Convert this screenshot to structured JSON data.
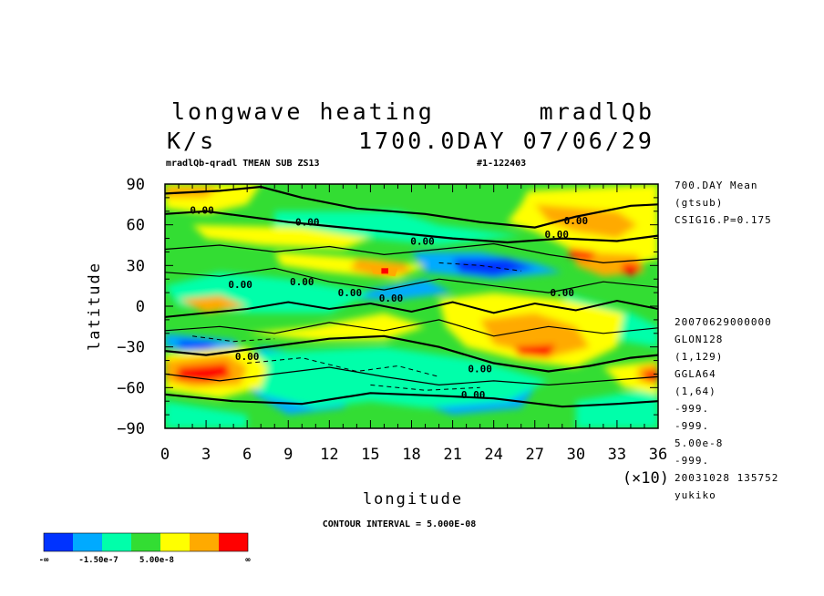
{
  "header": {
    "title_left": "longwave heating",
    "title_right": "mradlQb",
    "units": "K/s",
    "time": "1700.0DAY 07/06/29",
    "subtitle_left": "mradlQb-qradl TMEAN SUB ZS13",
    "subtitle_right": "#1-122403"
  },
  "side_info_top": [
    "700.DAY Mean",
    "(gtsub)",
    "CSIG16.P=0.175"
  ],
  "side_info_bottom": [
    "20070629000000",
    "GLON128",
    "(1,129)",
    "GGLA64",
    "(1,64)",
    "-999.",
    "-999.",
    "5.00e-8",
    "-999.",
    "20031028 135752",
    "yukiko"
  ],
  "footer": {
    "contour_interval": "CONTOUR INTERVAL = 5.000E-08",
    "x_multiplier": "(×10)"
  },
  "contour_labels": [
    "0.00",
    "0.00",
    "0.00",
    "0.00",
    "0.00",
    "0.00",
    "0.00",
    "0.00",
    "0.00",
    "0.00",
    "0.00",
    "0.00",
    "0.00"
  ],
  "colorbar": {
    "colors": [
      "#0033ff",
      "#00aaff",
      "#00ffaa",
      "#33dd33",
      "#ffff00",
      "#ffaa00",
      "#ff0000"
    ],
    "labels": [
      "-∞",
      "-1.50e-7",
      "5.00e-8",
      "∞"
    ]
  },
  "chart_data": {
    "type": "heatmap",
    "title": "longwave heating",
    "xlabel": "longitude",
    "ylabel": "latitude",
    "xlim": [
      0,
      360
    ],
    "ylim": [
      -90,
      90
    ],
    "x_ticks": [
      "0",
      "3",
      "6",
      "9",
      "12",
      "15",
      "18",
      "21",
      "24",
      "27",
      "30",
      "33",
      "36"
    ],
    "y_ticks": [
      "90",
      "60",
      "30",
      "0",
      "−30",
      "−60",
      "−90"
    ],
    "contour_interval": 5e-08,
    "grid": false
  }
}
